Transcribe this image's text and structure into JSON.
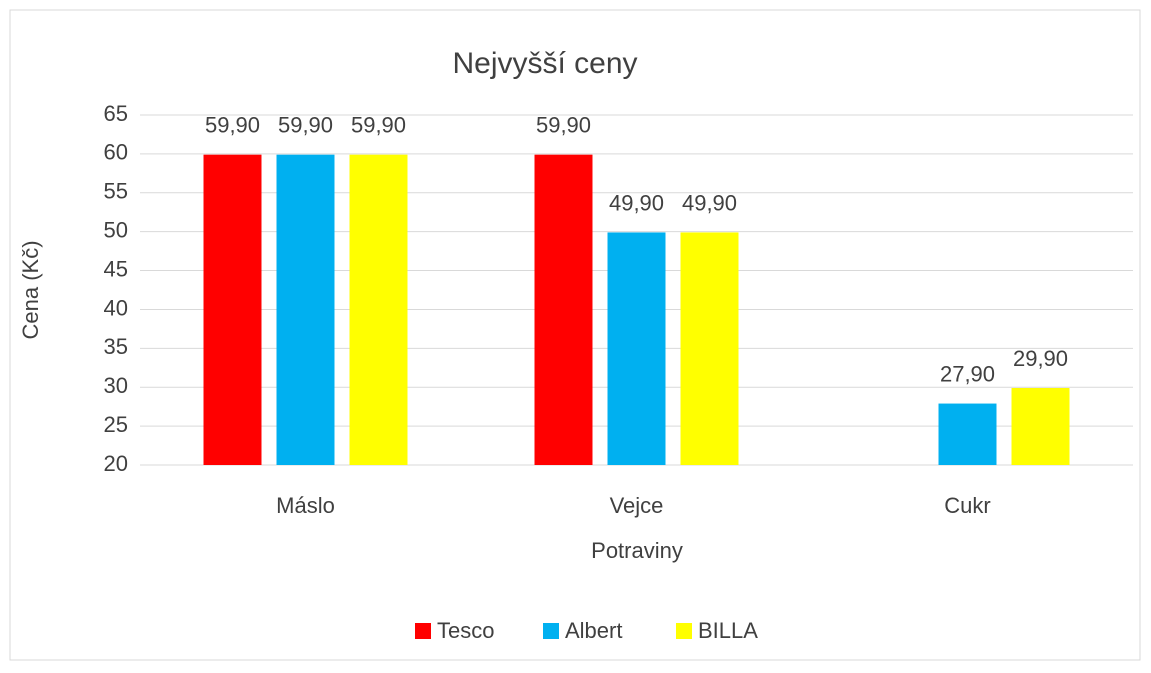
{
  "chart_data": {
    "type": "bar",
    "title": "Nejvyšší ceny",
    "x_label": "Potraviny",
    "y_label": "Cena (Kč)",
    "categories": [
      "Máslo",
      "Vejce",
      "Cukr"
    ],
    "series": [
      {
        "name": "Tesco",
        "color": "#ff0000",
        "values": [
          59.9,
          59.9,
          null
        ],
        "value_labels": [
          "59,90",
          "59,90",
          null
        ]
      },
      {
        "name": "Albert",
        "color": "#00b0f0",
        "values": [
          59.9,
          49.9,
          27.9
        ],
        "value_labels": [
          "59,90",
          "49,90",
          "27,90"
        ]
      },
      {
        "name": "BILLA",
        "color": "#ffff00",
        "values": [
          59.9,
          49.9,
          29.9
        ],
        "value_labels": [
          "59,90",
          "49,90",
          "29,90"
        ]
      }
    ],
    "ylim": [
      20,
      65
    ],
    "yticks": [
      20,
      25,
      30,
      35,
      40,
      45,
      50,
      55,
      60,
      65
    ],
    "grid": true,
    "legend": "bottom"
  }
}
